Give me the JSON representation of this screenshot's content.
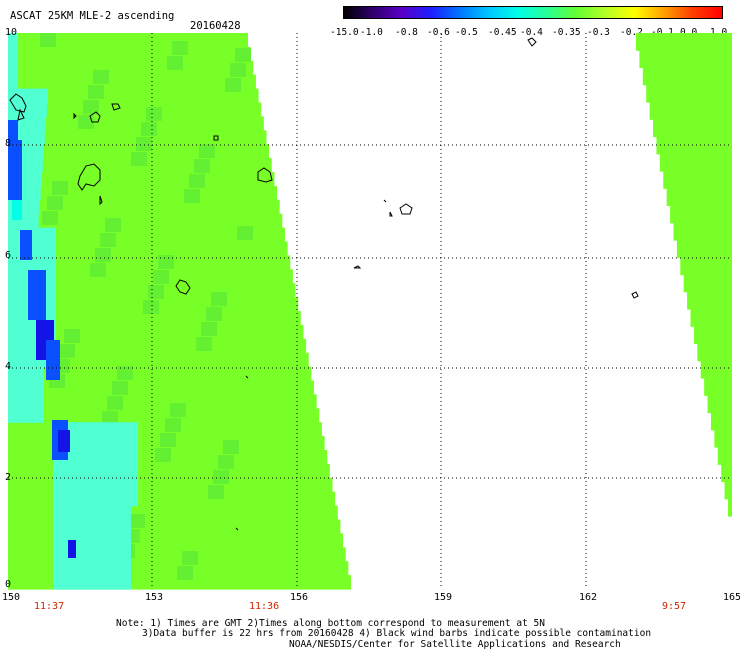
{
  "header": {
    "title": "ASCAT 25KM MLE-2 ascending",
    "date": "20160428"
  },
  "colorbar": {
    "labels": [
      "-15.0",
      "-1.0",
      "-0.8",
      "-0.6",
      "-0.5",
      "-0.45",
      "-0.4",
      "-0.35",
      "-0.3",
      "-0.2",
      "-0.1",
      "0.0",
      "1.0"
    ],
    "colors": [
      "#000000",
      "#30006e",
      "#5a00c8",
      "#1e1eff",
      "#0078ff",
      "#00c8ff",
      "#00ffe6",
      "#28ff96",
      "#64ff32",
      "#b4ff28",
      "#ffff00",
      "#ffa000",
      "#ff3c00",
      "#ff0000"
    ]
  },
  "axes": {
    "x_ticks": [
      "150",
      "153",
      "156",
      "159",
      "162",
      "165"
    ],
    "y_ticks": [
      "10",
      "8",
      "6",
      "4",
      "2",
      "0"
    ]
  },
  "pass_times": [
    "11:37",
    "11:36",
    "9:57"
  ],
  "notes": {
    "line1": "Note: 1) Times are GMT 2)Times along bottom correspond to measurement at 5N",
    "line2": "3)Data buffer is 22 hrs from 20160428 4) Black wind barbs indicate possible contamination",
    "line3": "NOAA/NESDIS/Center for Satellite Applications and Research"
  },
  "swath_colors": {
    "main": "#78ff28",
    "mid": "#64f032",
    "cyan": "#00ffe6",
    "light_cyan": "#50ffd2",
    "blue": "#0a50ff",
    "deep_blue": "#1414e6"
  }
}
